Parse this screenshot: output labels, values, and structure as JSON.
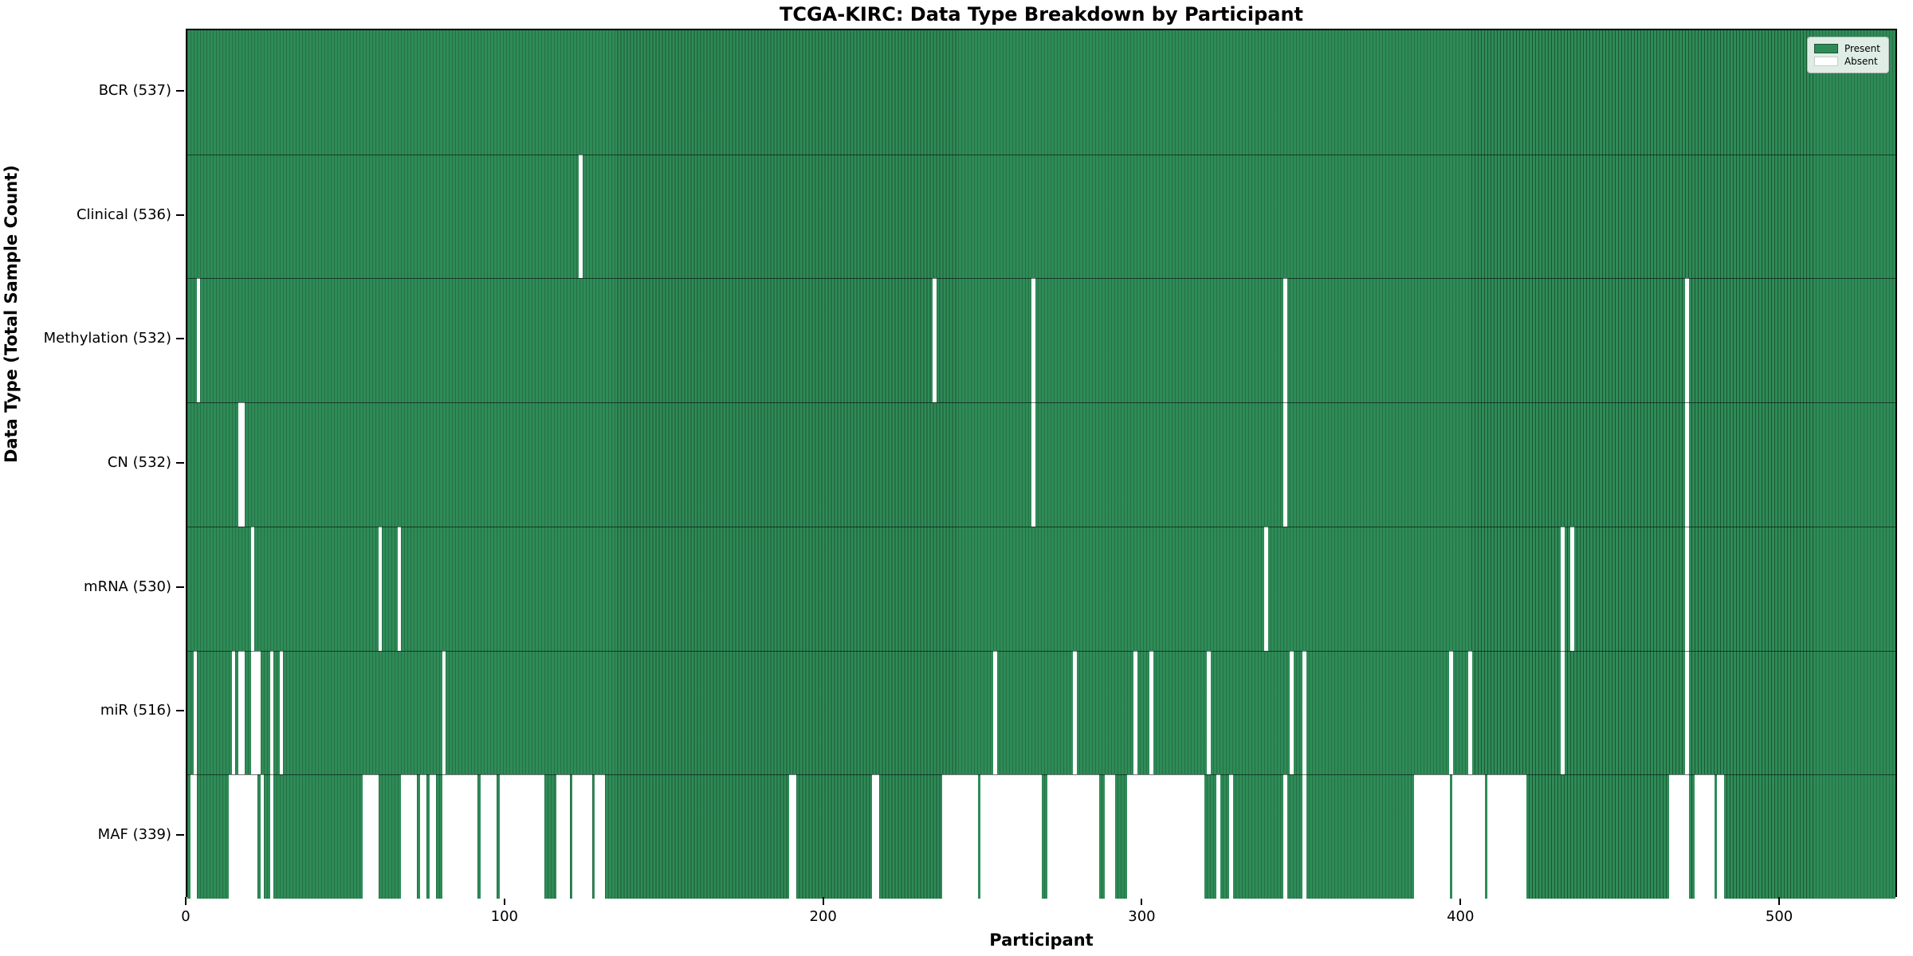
{
  "chart_data": {
    "type": "heatmap",
    "title": "TCGA-KIRC: Data Type Breakdown by Participant",
    "xlabel": "Participant",
    "ylabel": "Data Type (Total Sample Count)",
    "n_participants": 537,
    "x_ticks": [
      0,
      100,
      200,
      300,
      400,
      500
    ],
    "legend_position": "upper right",
    "grid": false,
    "legend": [
      {
        "label": "Present",
        "color": "#2e8b57"
      },
      {
        "label": "Absent",
        "color": "#ffffff"
      }
    ],
    "present_edge_color": "#1c5434",
    "rows": [
      {
        "label": "BCR (537)",
        "name": "BCR",
        "total": 537,
        "absent_ranges": []
      },
      {
        "label": "Clinical (536)",
        "name": "Clinical",
        "total": 536,
        "absent_ranges": [
          [
            123,
            123
          ]
        ]
      },
      {
        "label": "Methylation (532)",
        "name": "Methylation",
        "total": 532,
        "absent_ranges": [
          [
            3,
            3
          ],
          [
            234,
            234
          ],
          [
            265,
            265
          ],
          [
            344,
            344
          ],
          [
            470,
            470
          ]
        ]
      },
      {
        "label": "CN (532)",
        "name": "CN",
        "total": 532,
        "absent_ranges": [
          [
            16,
            17
          ],
          [
            265,
            265
          ],
          [
            344,
            344
          ],
          [
            470,
            470
          ]
        ]
      },
      {
        "label": "mRNA (530)",
        "name": "mRNA",
        "total": 530,
        "absent_ranges": [
          [
            20,
            20
          ],
          [
            60,
            60
          ],
          [
            66,
            66
          ],
          [
            338,
            338
          ],
          [
            431,
            431
          ],
          [
            434,
            434
          ],
          [
            470,
            470
          ]
        ]
      },
      {
        "label": "miR (516)",
        "name": "miR",
        "total": 516,
        "absent_ranges": [
          [
            2,
            2
          ],
          [
            14,
            14
          ],
          [
            16,
            17
          ],
          [
            20,
            22
          ],
          [
            26,
            26
          ],
          [
            29,
            29
          ],
          [
            80,
            80
          ],
          [
            253,
            253
          ],
          [
            278,
            278
          ],
          [
            297,
            297
          ],
          [
            302,
            302
          ],
          [
            320,
            320
          ],
          [
            346,
            346
          ],
          [
            350,
            350
          ],
          [
            396,
            396
          ],
          [
            402,
            402
          ],
          [
            431,
            431
          ],
          [
            470,
            470
          ]
        ]
      },
      {
        "label": "MAF (339)",
        "name": "MAF",
        "total": 339,
        "absent_ranges": [
          [
            1,
            2
          ],
          [
            13,
            21
          ],
          [
            23,
            23
          ],
          [
            26,
            26
          ],
          [
            55,
            59
          ],
          [
            67,
            71
          ],
          [
            73,
            74
          ],
          [
            76,
            77
          ],
          [
            80,
            90
          ],
          [
            92,
            96
          ],
          [
            98,
            111
          ],
          [
            116,
            119
          ],
          [
            121,
            126
          ],
          [
            128,
            130
          ],
          [
            189,
            190
          ],
          [
            215,
            216
          ],
          [
            237,
            247
          ],
          [
            249,
            267
          ],
          [
            270,
            285
          ],
          [
            288,
            290
          ],
          [
            295,
            318
          ],
          [
            323,
            323
          ],
          [
            327,
            327
          ],
          [
            344,
            344
          ],
          [
            350,
            350
          ],
          [
            385,
            395
          ],
          [
            397,
            406
          ],
          [
            408,
            419
          ],
          [
            465,
            470
          ],
          [
            473,
            478
          ],
          [
            480,
            481
          ]
        ]
      }
    ]
  }
}
